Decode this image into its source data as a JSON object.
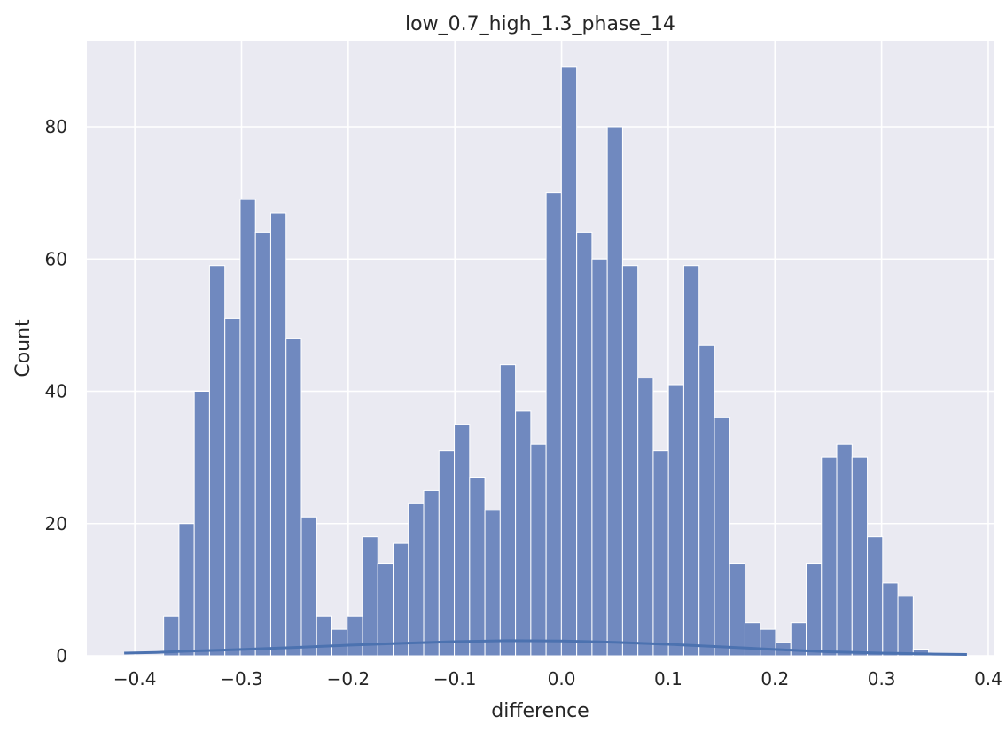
{
  "chart_data": {
    "type": "bar",
    "title": "low_0.7_high_1.3_phase_14",
    "xlabel": "difference",
    "ylabel": "Count",
    "xlim": [
      -0.445,
      0.405
    ],
    "ylim": [
      0,
      93
    ],
    "grid": true,
    "xticks": [
      -0.4,
      -0.3,
      -0.2,
      -0.1,
      0.0,
      0.1,
      0.2,
      0.3,
      0.4
    ],
    "xtick_labels": [
      "−0.4",
      "−0.3",
      "−0.2",
      "−0.1",
      "0.0",
      "0.1",
      "0.2",
      "0.3",
      "0.4"
    ],
    "yticks": [
      0,
      20,
      40,
      60,
      80
    ],
    "ytick_labels": [
      "0",
      "20",
      "40",
      "60",
      "80"
    ],
    "bin_start": -0.373,
    "bin_width": 0.01434,
    "values": [
      6,
      20,
      40,
      59,
      51,
      69,
      64,
      67,
      48,
      21,
      6,
      4,
      6,
      18,
      14,
      17,
      23,
      25,
      31,
      35,
      27,
      22,
      44,
      37,
      32,
      70,
      89,
      64,
      60,
      80,
      59,
      42,
      31,
      41,
      59,
      47,
      36,
      14,
      5,
      4,
      2,
      5,
      14,
      30,
      32,
      30,
      18,
      11,
      9,
      1
    ],
    "kde": {
      "x": [
        -0.41,
        -0.38,
        -0.35,
        -0.3,
        -0.25,
        -0.2,
        -0.15,
        -0.1,
        -0.05,
        0.0,
        0.05,
        0.1,
        0.15,
        0.2,
        0.25,
        0.3,
        0.35,
        0.38
      ],
      "y": [
        0.4,
        0.5,
        0.7,
        0.95,
        1.25,
        1.6,
        1.9,
        2.15,
        2.3,
        2.25,
        2.05,
        1.75,
        1.35,
        0.95,
        0.6,
        0.4,
        0.25,
        0.2
      ]
    },
    "colors": {
      "bar": "#7089bf",
      "bar_edge": "#ffffff",
      "kde_line": "#4c72b0",
      "plot_bg": "#eaeaf2",
      "grid": "#ffffff"
    }
  }
}
